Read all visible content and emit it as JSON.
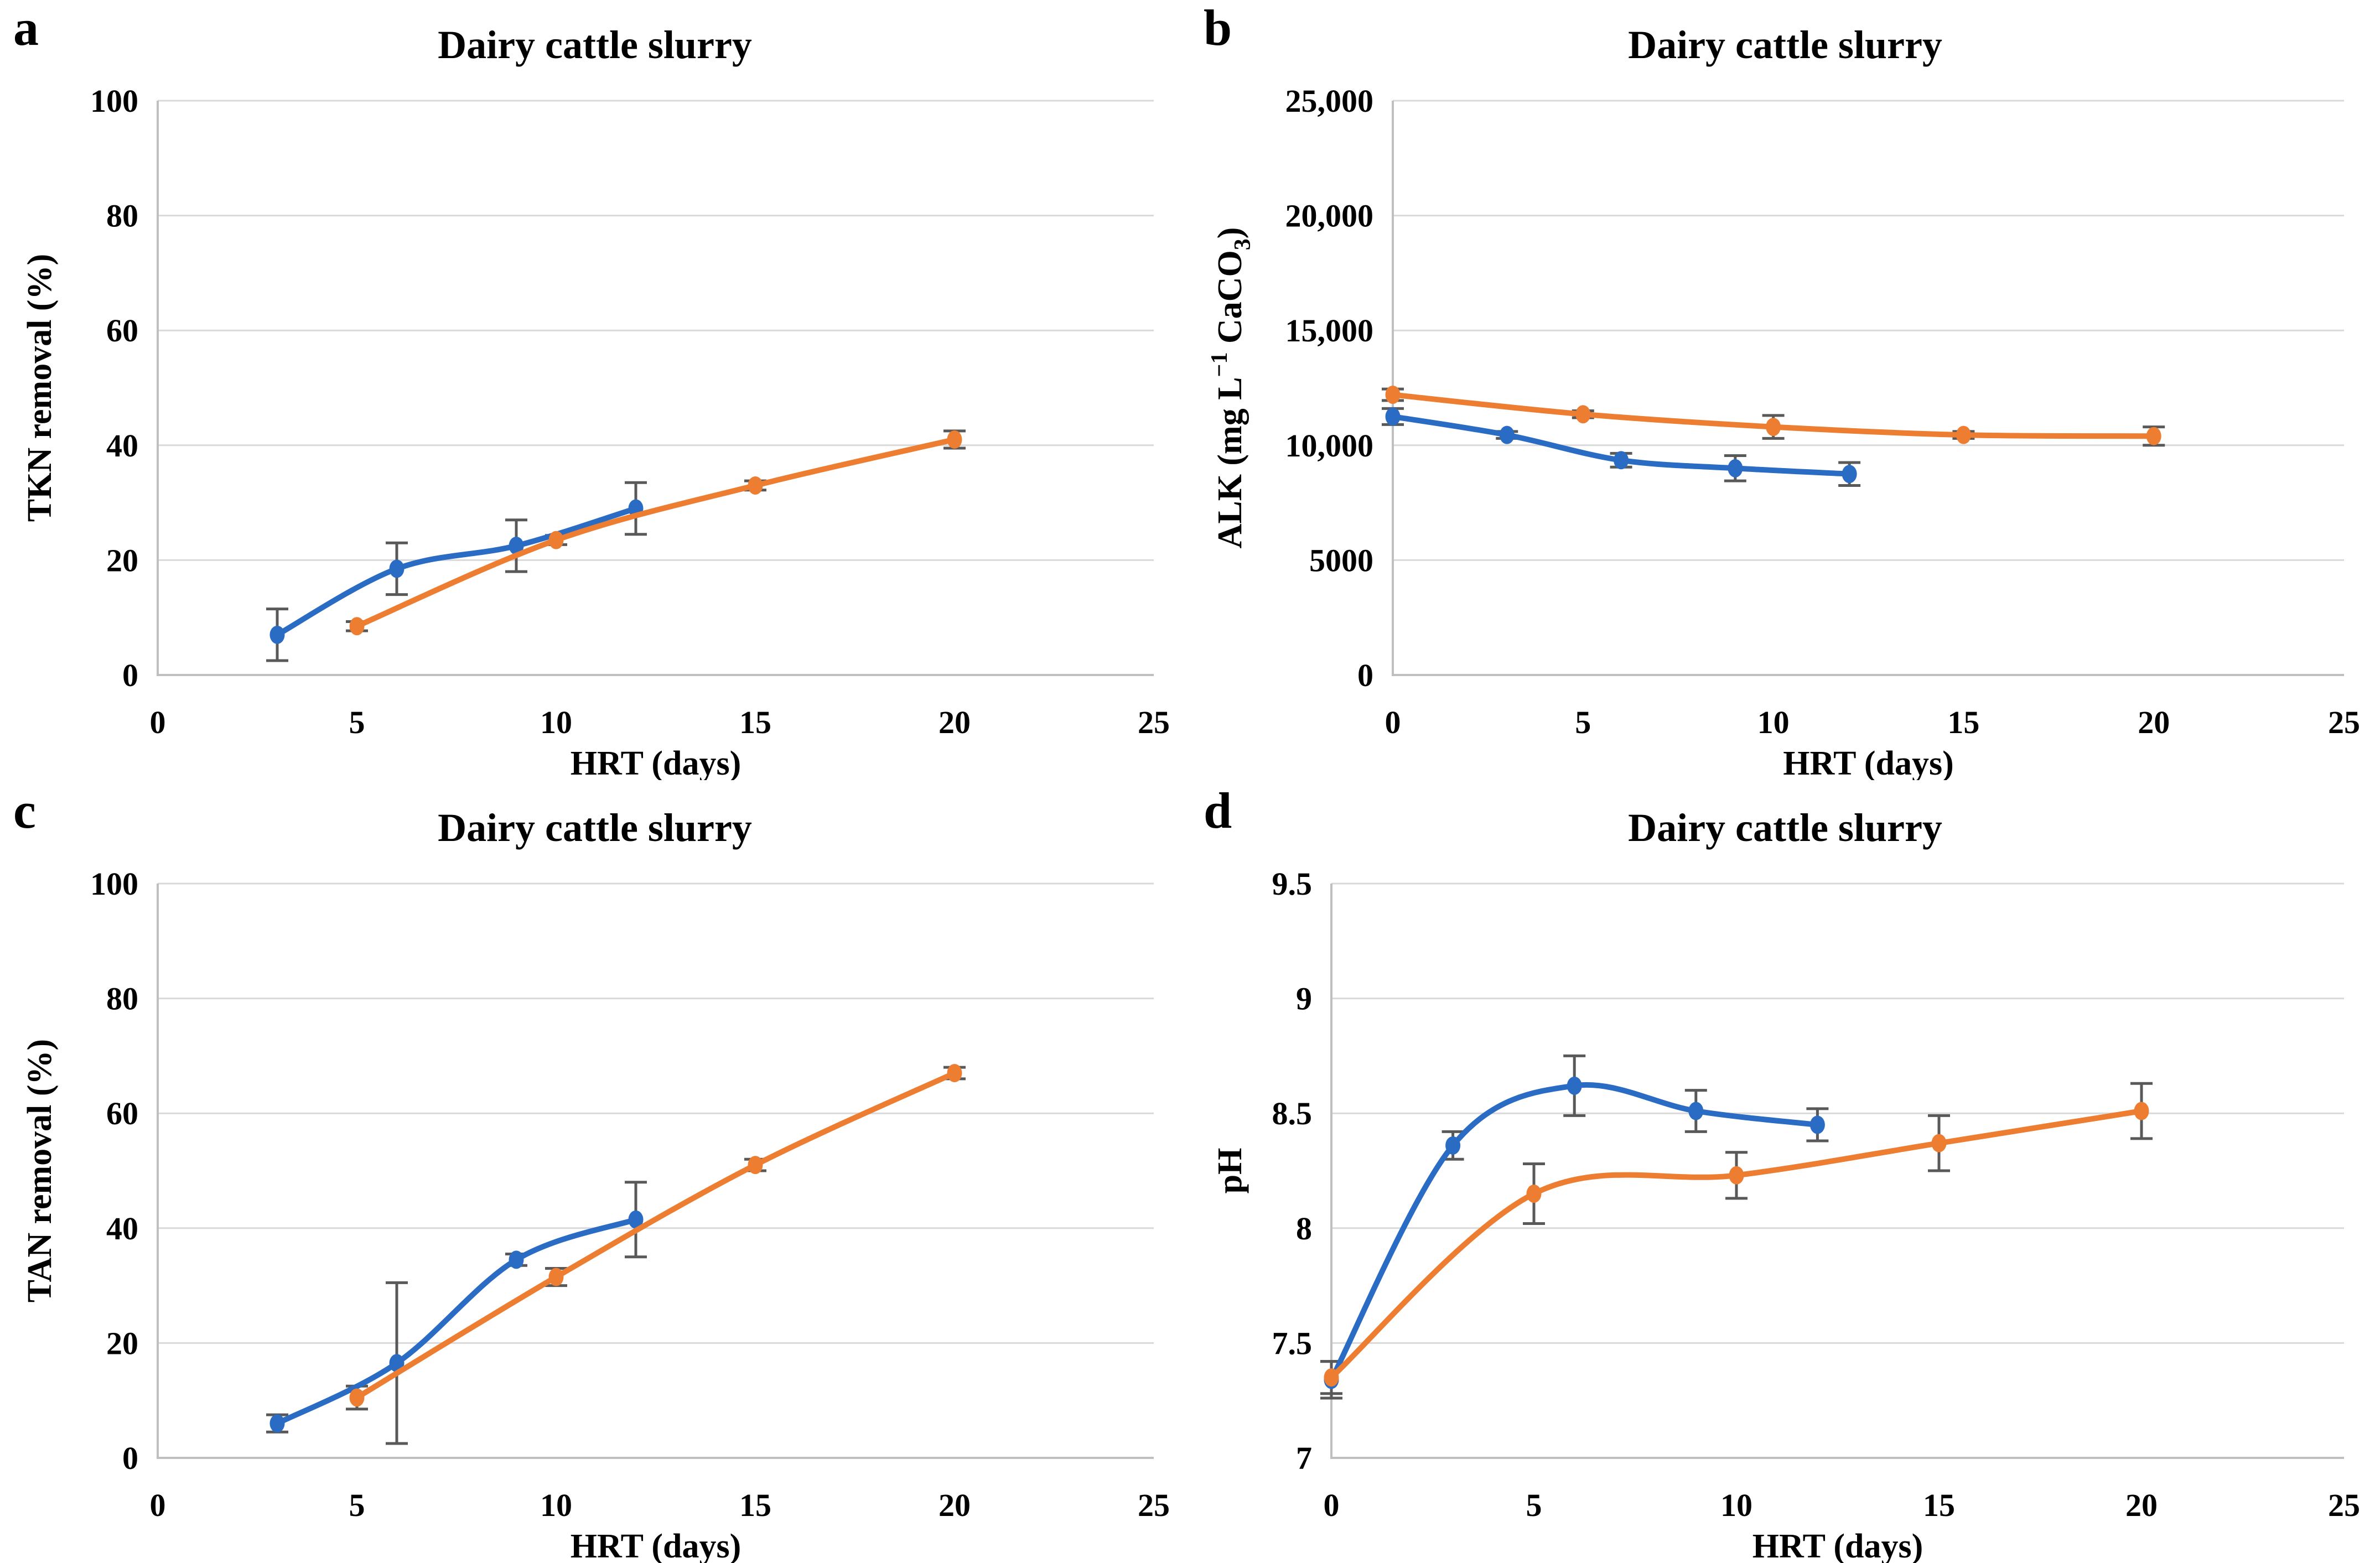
{
  "figure": {
    "background": "#FFFFFF",
    "description_title": "Dairy cattle slurry four-panel figure"
  },
  "colors": {
    "series_blue": "#2A6BC4",
    "series_orange": "#ED7D31",
    "error_bar": "#595959",
    "gridline": "#D9D9D9",
    "axis_line": "#BFBFBF",
    "text": "#000000",
    "background": "#FFFFFF"
  },
  "chart_data": [
    {
      "id": "a",
      "letter": "a",
      "type": "line",
      "title": "Dairy cattle slurry",
      "xlabel": "HRT (days)",
      "ylabel": "TKN removal (%)",
      "ylabel_rich": [
        {
          "t": "TKN removal (%)"
        }
      ],
      "xlim": [
        0,
        25
      ],
      "ylim": [
        0,
        100
      ],
      "xticks": [
        0,
        5,
        10,
        15,
        20,
        25
      ],
      "xtick_labels": [
        "0",
        "5",
        "10",
        "15",
        "20",
        "25"
      ],
      "yticks": [
        0,
        20,
        40,
        60,
        80,
        100
      ],
      "ytick_labels": [
        "0",
        "20",
        "40",
        "60",
        "80",
        "100"
      ],
      "grid": "horizontal",
      "legend": "none",
      "layout": {
        "margin_left": 285
      },
      "series": [
        {
          "name": "blue",
          "marker": "circle",
          "smooth": true,
          "x": [
            3,
            6,
            9,
            12
          ],
          "y": [
            7,
            18.5,
            22.5,
            29
          ],
          "err": [
            4.5,
            4.5,
            4.5,
            4.5
          ]
        },
        {
          "name": "orange",
          "marker": "circle",
          "smooth": true,
          "x": [
            5,
            10,
            15,
            20
          ],
          "y": [
            8.5,
            23.5,
            33,
            41
          ],
          "err": [
            0.8,
            0.8,
            0.8,
            1.5
          ]
        }
      ]
    },
    {
      "id": "b",
      "letter": "b",
      "type": "line",
      "title": "Dairy cattle slurry",
      "xlabel": "HRT (days)",
      "ylabel": "ALK (mg L−1 CaCO3)",
      "ylabel_rich": [
        {
          "t": "ALK (mg L"
        },
        {
          "t": "−1",
          "pos": "sup"
        },
        {
          "t": " CaCO"
        },
        {
          "t": "3",
          "pos": "sub"
        },
        {
          "t": ")"
        }
      ],
      "xlim": [
        0,
        25
      ],
      "ylim": [
        0,
        25000
      ],
      "xticks": [
        0,
        5,
        10,
        15,
        20,
        25
      ],
      "xtick_labels": [
        "0",
        "5",
        "10",
        "15",
        "20",
        "25"
      ],
      "yticks": [
        0,
        5000,
        10000,
        15000,
        20000,
        25000
      ],
      "ytick_labels": [
        "0",
        "5000",
        "10,000",
        "15,000",
        "20,000",
        "25,000"
      ],
      "grid": "horizontal",
      "legend": "none",
      "layout": {
        "margin_left": 366
      },
      "series": [
        {
          "name": "blue",
          "marker": "circle",
          "smooth": true,
          "x": [
            0,
            3,
            6,
            9,
            12
          ],
          "y": [
            11250,
            10450,
            9350,
            9000,
            8750
          ],
          "err": [
            350,
            150,
            300,
            550,
            500
          ]
        },
        {
          "name": "orange",
          "marker": "circle",
          "smooth": true,
          "x": [
            0,
            5,
            10,
            15,
            20
          ],
          "y": [
            12200,
            11350,
            10800,
            10450,
            10400
          ],
          "err": [
            250,
            150,
            500,
            150,
            400
          ]
        }
      ]
    },
    {
      "id": "c",
      "letter": "c",
      "type": "line",
      "title": "Dairy cattle slurry",
      "xlabel": "HRT (days)",
      "ylabel": "TAN removal (%)",
      "ylabel_rich": [
        {
          "t": "TAN removal (%)"
        }
      ],
      "xlim": [
        0,
        25
      ],
      "ylim": [
        0,
        100
      ],
      "xticks": [
        0,
        5,
        10,
        15,
        20,
        25
      ],
      "xtick_labels": [
        "0",
        "5",
        "10",
        "15",
        "20",
        "25"
      ],
      "yticks": [
        0,
        20,
        40,
        60,
        80,
        100
      ],
      "ytick_labels": [
        "0",
        "20",
        "40",
        "60",
        "80",
        "100"
      ],
      "grid": "horizontal",
      "legend": "none",
      "layout": {
        "margin_left": 285
      },
      "series": [
        {
          "name": "blue",
          "marker": "circle",
          "smooth": true,
          "x": [
            3,
            6,
            9,
            12
          ],
          "y": [
            6,
            16.5,
            34.5,
            41.5
          ],
          "err": [
            1.5,
            14,
            1,
            6.5
          ]
        },
        {
          "name": "orange",
          "marker": "circle",
          "smooth": true,
          "x": [
            5,
            10,
            15,
            20
          ],
          "y": [
            10.5,
            31.5,
            51,
            67
          ],
          "err": [
            2,
            1.5,
            1,
            1
          ]
        }
      ]
    },
    {
      "id": "d",
      "letter": "d",
      "type": "line",
      "title": "Dairy cattle slurry",
      "xlabel": "HRT (days)",
      "ylabel": "pH",
      "ylabel_rich": [
        {
          "t": "pH"
        }
      ],
      "xlim": [
        0,
        25
      ],
      "ylim": [
        7,
        9.5
      ],
      "xticks": [
        0,
        5,
        10,
        15,
        20,
        25
      ],
      "xtick_labels": [
        "0",
        "5",
        "10",
        "15",
        "20",
        "25"
      ],
      "yticks": [
        7,
        7.5,
        8,
        8.5,
        9,
        9.5
      ],
      "ytick_labels": [
        "7",
        "7.5",
        "8",
        "8.5",
        "9",
        "9.5"
      ],
      "grid": "horizontal",
      "legend": "none",
      "layout": {
        "margin_left": 255
      },
      "series": [
        {
          "name": "blue",
          "marker": "circle",
          "smooth": true,
          "x": [
            0,
            3,
            6,
            9,
            12
          ],
          "y": [
            7.34,
            8.36,
            8.62,
            8.51,
            8.45
          ],
          "err": [
            0.08,
            0.06,
            0.13,
            0.09,
            0.07
          ]
        },
        {
          "name": "orange",
          "marker": "circle",
          "smooth": true,
          "x": [
            0,
            5,
            10,
            15,
            20
          ],
          "y": [
            7.35,
            8.15,
            8.23,
            8.37,
            8.51
          ],
          "err": [
            0.07,
            0.13,
            0.1,
            0.12,
            0.12
          ]
        }
      ]
    }
  ]
}
